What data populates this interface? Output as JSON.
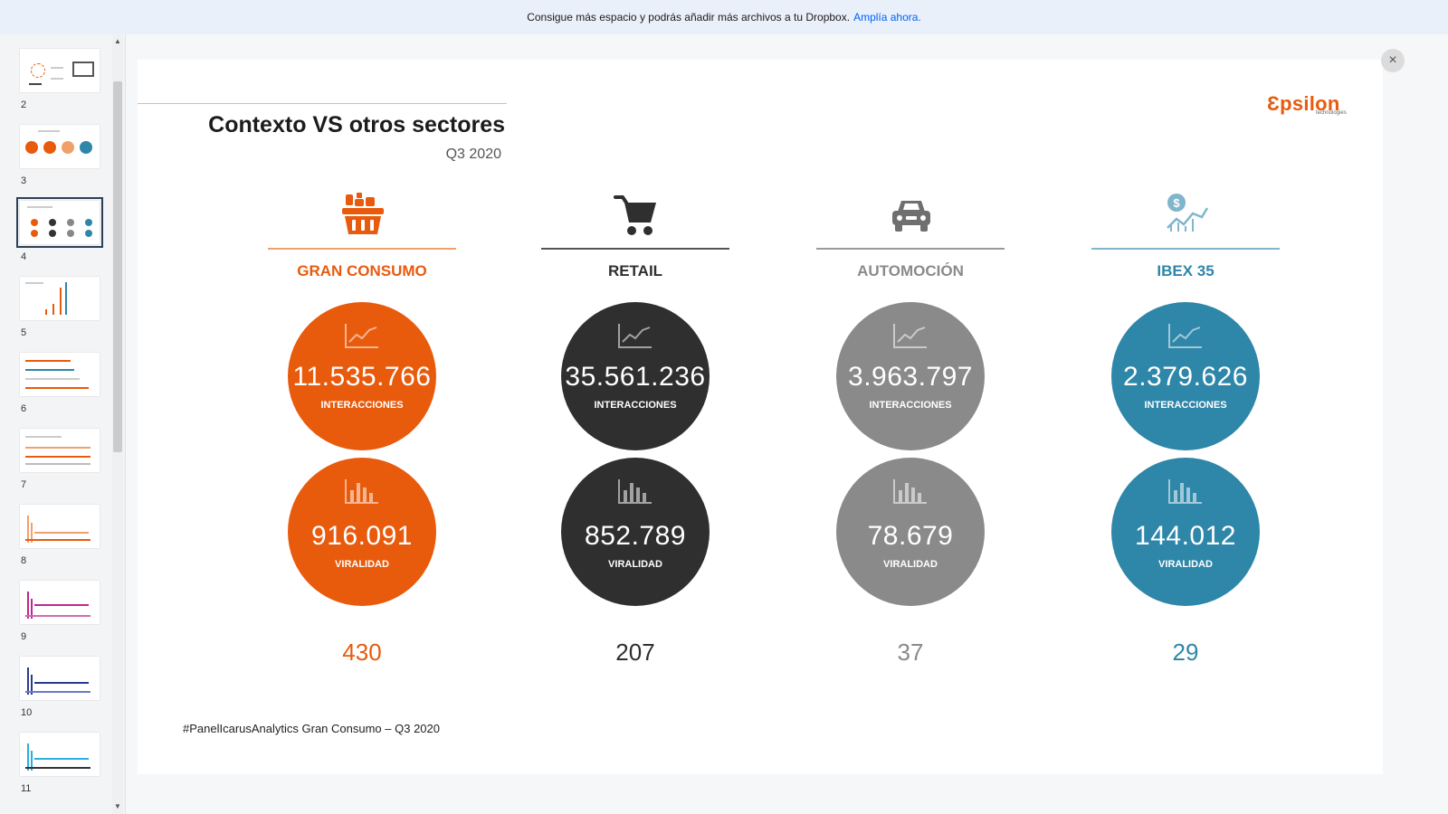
{
  "banner": {
    "message": "Consigue más espacio y podrás añadir más archivos a tu Dropbox.",
    "link": "Amplía ahora."
  },
  "thumbnails": [
    {
      "number": "2"
    },
    {
      "number": "3"
    },
    {
      "number": "4",
      "active": true
    },
    {
      "number": "5"
    },
    {
      "number": "6"
    },
    {
      "number": "7"
    },
    {
      "number": "8"
    },
    {
      "number": "9"
    },
    {
      "number": "10"
    },
    {
      "number": "11"
    }
  ],
  "slide": {
    "title": "Contexto VS otros sectores",
    "subtitle": "Q3 2020",
    "logo": "Ɛpsilon",
    "logo_sub": "technologies",
    "footer": "#PanelIcarusAnalytics Gran Consumo – Q3 2020",
    "interactions_label": "INTERACCIONES",
    "virality_label": "VIRALIDAD",
    "sectors": [
      {
        "name": "GRAN CONSUMO",
        "icon": "grocery-basket-icon",
        "color": "#e85b0d",
        "interactions": "11.535.766",
        "virality": "916.091",
        "count": "430"
      },
      {
        "name": "RETAIL",
        "icon": "shopping-cart-icon",
        "color": "#2f2f2f",
        "interactions": "35.561.236",
        "virality": "852.789",
        "count": "207"
      },
      {
        "name": "AUTOMOCIÓN",
        "icon": "car-icon",
        "color": "#8a8a8a",
        "interactions": "3.963.797",
        "virality": "78.679",
        "count": "37"
      },
      {
        "name": "IBEX 35",
        "icon": "stock-growth-icon",
        "color": "#2e86a8",
        "interactions": "2.379.626",
        "virality": "144.012",
        "count": "29"
      }
    ]
  }
}
